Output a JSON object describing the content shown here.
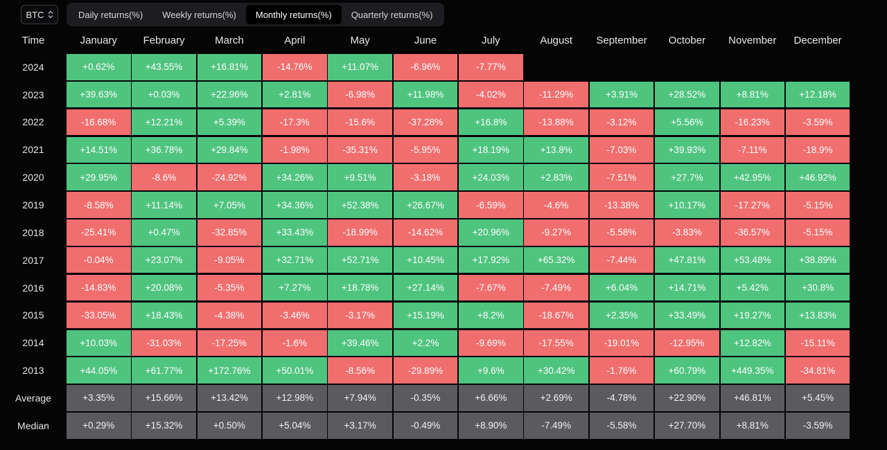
{
  "toolbar": {
    "asset": "BTC",
    "tabs": [
      {
        "label": "Daily returns(%)",
        "active": false
      },
      {
        "label": "Weekly returns(%)",
        "active": false
      },
      {
        "label": "Monthly returns(%)",
        "active": true
      },
      {
        "label": "Quarterly returns(%)",
        "active": false
      }
    ]
  },
  "table": {
    "corner_label": "Time",
    "months": [
      "January",
      "February",
      "March",
      "April",
      "May",
      "June",
      "July",
      "August",
      "September",
      "October",
      "November",
      "December"
    ],
    "rows": [
      {
        "label": "2024",
        "values": [
          "+0.62%",
          "+43.55%",
          "+16.81%",
          "-14.76%",
          "+11.07%",
          "-6.96%",
          "-7.77%",
          "",
          "",
          "",
          "",
          ""
        ]
      },
      {
        "label": "2023",
        "values": [
          "+39.63%",
          "+0.03%",
          "+22.96%",
          "+2.81%",
          "-6.98%",
          "+11.98%",
          "-4.02%",
          "-11.29%",
          "+3.91%",
          "+28.52%",
          "+8.81%",
          "+12.18%"
        ]
      },
      {
        "label": "2022",
        "values": [
          "-16.68%",
          "+12.21%",
          "+5.39%",
          "-17.3%",
          "-15.6%",
          "-37.28%",
          "+16.8%",
          "-13.88%",
          "-3.12%",
          "+5.56%",
          "-16.23%",
          "-3.59%"
        ]
      },
      {
        "label": "2021",
        "values": [
          "+14.51%",
          "+36.78%",
          "+29.84%",
          "-1.98%",
          "-35.31%",
          "-5.95%",
          "+18.19%",
          "+13.8%",
          "-7.03%",
          "+39.93%",
          "-7.11%",
          "-18.9%"
        ]
      },
      {
        "label": "2020",
        "values": [
          "+29.95%",
          "-8.6%",
          "-24.92%",
          "+34.26%",
          "+9.51%",
          "-3.18%",
          "+24.03%",
          "+2.83%",
          "-7.51%",
          "+27.7%",
          "+42.95%",
          "+46.92%"
        ]
      },
      {
        "label": "2019",
        "values": [
          "-8.58%",
          "+11.14%",
          "+7.05%",
          "+34.36%",
          "+52.38%",
          "+26.67%",
          "-6.59%",
          "-4.6%",
          "-13.38%",
          "+10.17%",
          "-17.27%",
          "-5.15%"
        ]
      },
      {
        "label": "2018",
        "values": [
          "-25.41%",
          "+0.47%",
          "-32.85%",
          "+33.43%",
          "-18.99%",
          "-14.62%",
          "+20.96%",
          "-9.27%",
          "-5.58%",
          "-3.83%",
          "-36.57%",
          "-5.15%"
        ]
      },
      {
        "label": "2017",
        "values": [
          "-0.04%",
          "+23.07%",
          "-9.05%",
          "+32.71%",
          "+52.71%",
          "+10.45%",
          "+17.92%",
          "+65.32%",
          "-7.44%",
          "+47.81%",
          "+53.48%",
          "+38.89%"
        ]
      },
      {
        "label": "2016",
        "values": [
          "-14.83%",
          "+20.08%",
          "-5.35%",
          "+7.27%",
          "+18.78%",
          "+27.14%",
          "-7.67%",
          "-7.49%",
          "+6.04%",
          "+14.71%",
          "+5.42%",
          "+30.8%"
        ]
      },
      {
        "label": "2015",
        "values": [
          "-33.05%",
          "+18.43%",
          "-4.38%",
          "-3.46%",
          "-3.17%",
          "+15.19%",
          "+8.2%",
          "-18.67%",
          "+2.35%",
          "+33.49%",
          "+19.27%",
          "+13.83%"
        ]
      },
      {
        "label": "2014",
        "values": [
          "+10.03%",
          "-31.03%",
          "-17.25%",
          "-1.6%",
          "+39.46%",
          "+2.2%",
          "-9.69%",
          "-17.55%",
          "-19.01%",
          "-12.95%",
          "+12.82%",
          "-15.11%"
        ]
      },
      {
        "label": "2013",
        "values": [
          "+44.05%",
          "+61.77%",
          "+172.76%",
          "+50.01%",
          "-8.56%",
          "-29.89%",
          "+9.6%",
          "+30.42%",
          "-1.76%",
          "+60.79%",
          "+449.35%",
          "-34.81%"
        ]
      }
    ],
    "summary_rows": [
      {
        "label": "Average",
        "values": [
          "+3.35%",
          "+15.66%",
          "+13.42%",
          "+12.98%",
          "+7.94%",
          "-0.35%",
          "+6.66%",
          "+2.69%",
          "-4.78%",
          "+22.90%",
          "+46.81%",
          "+5.45%"
        ]
      },
      {
        "label": "Median",
        "values": [
          "+0.29%",
          "+15.32%",
          "+0.50%",
          "+5.04%",
          "+3.17%",
          "-0.49%",
          "+8.90%",
          "-7.49%",
          "-5.58%",
          "+27.70%",
          "+8.81%",
          "-3.59%"
        ]
      }
    ]
  },
  "colors": {
    "positive": "#4fc47f",
    "negative": "#f06e6e",
    "summary": "#5b5b5f",
    "background": "#050506"
  }
}
